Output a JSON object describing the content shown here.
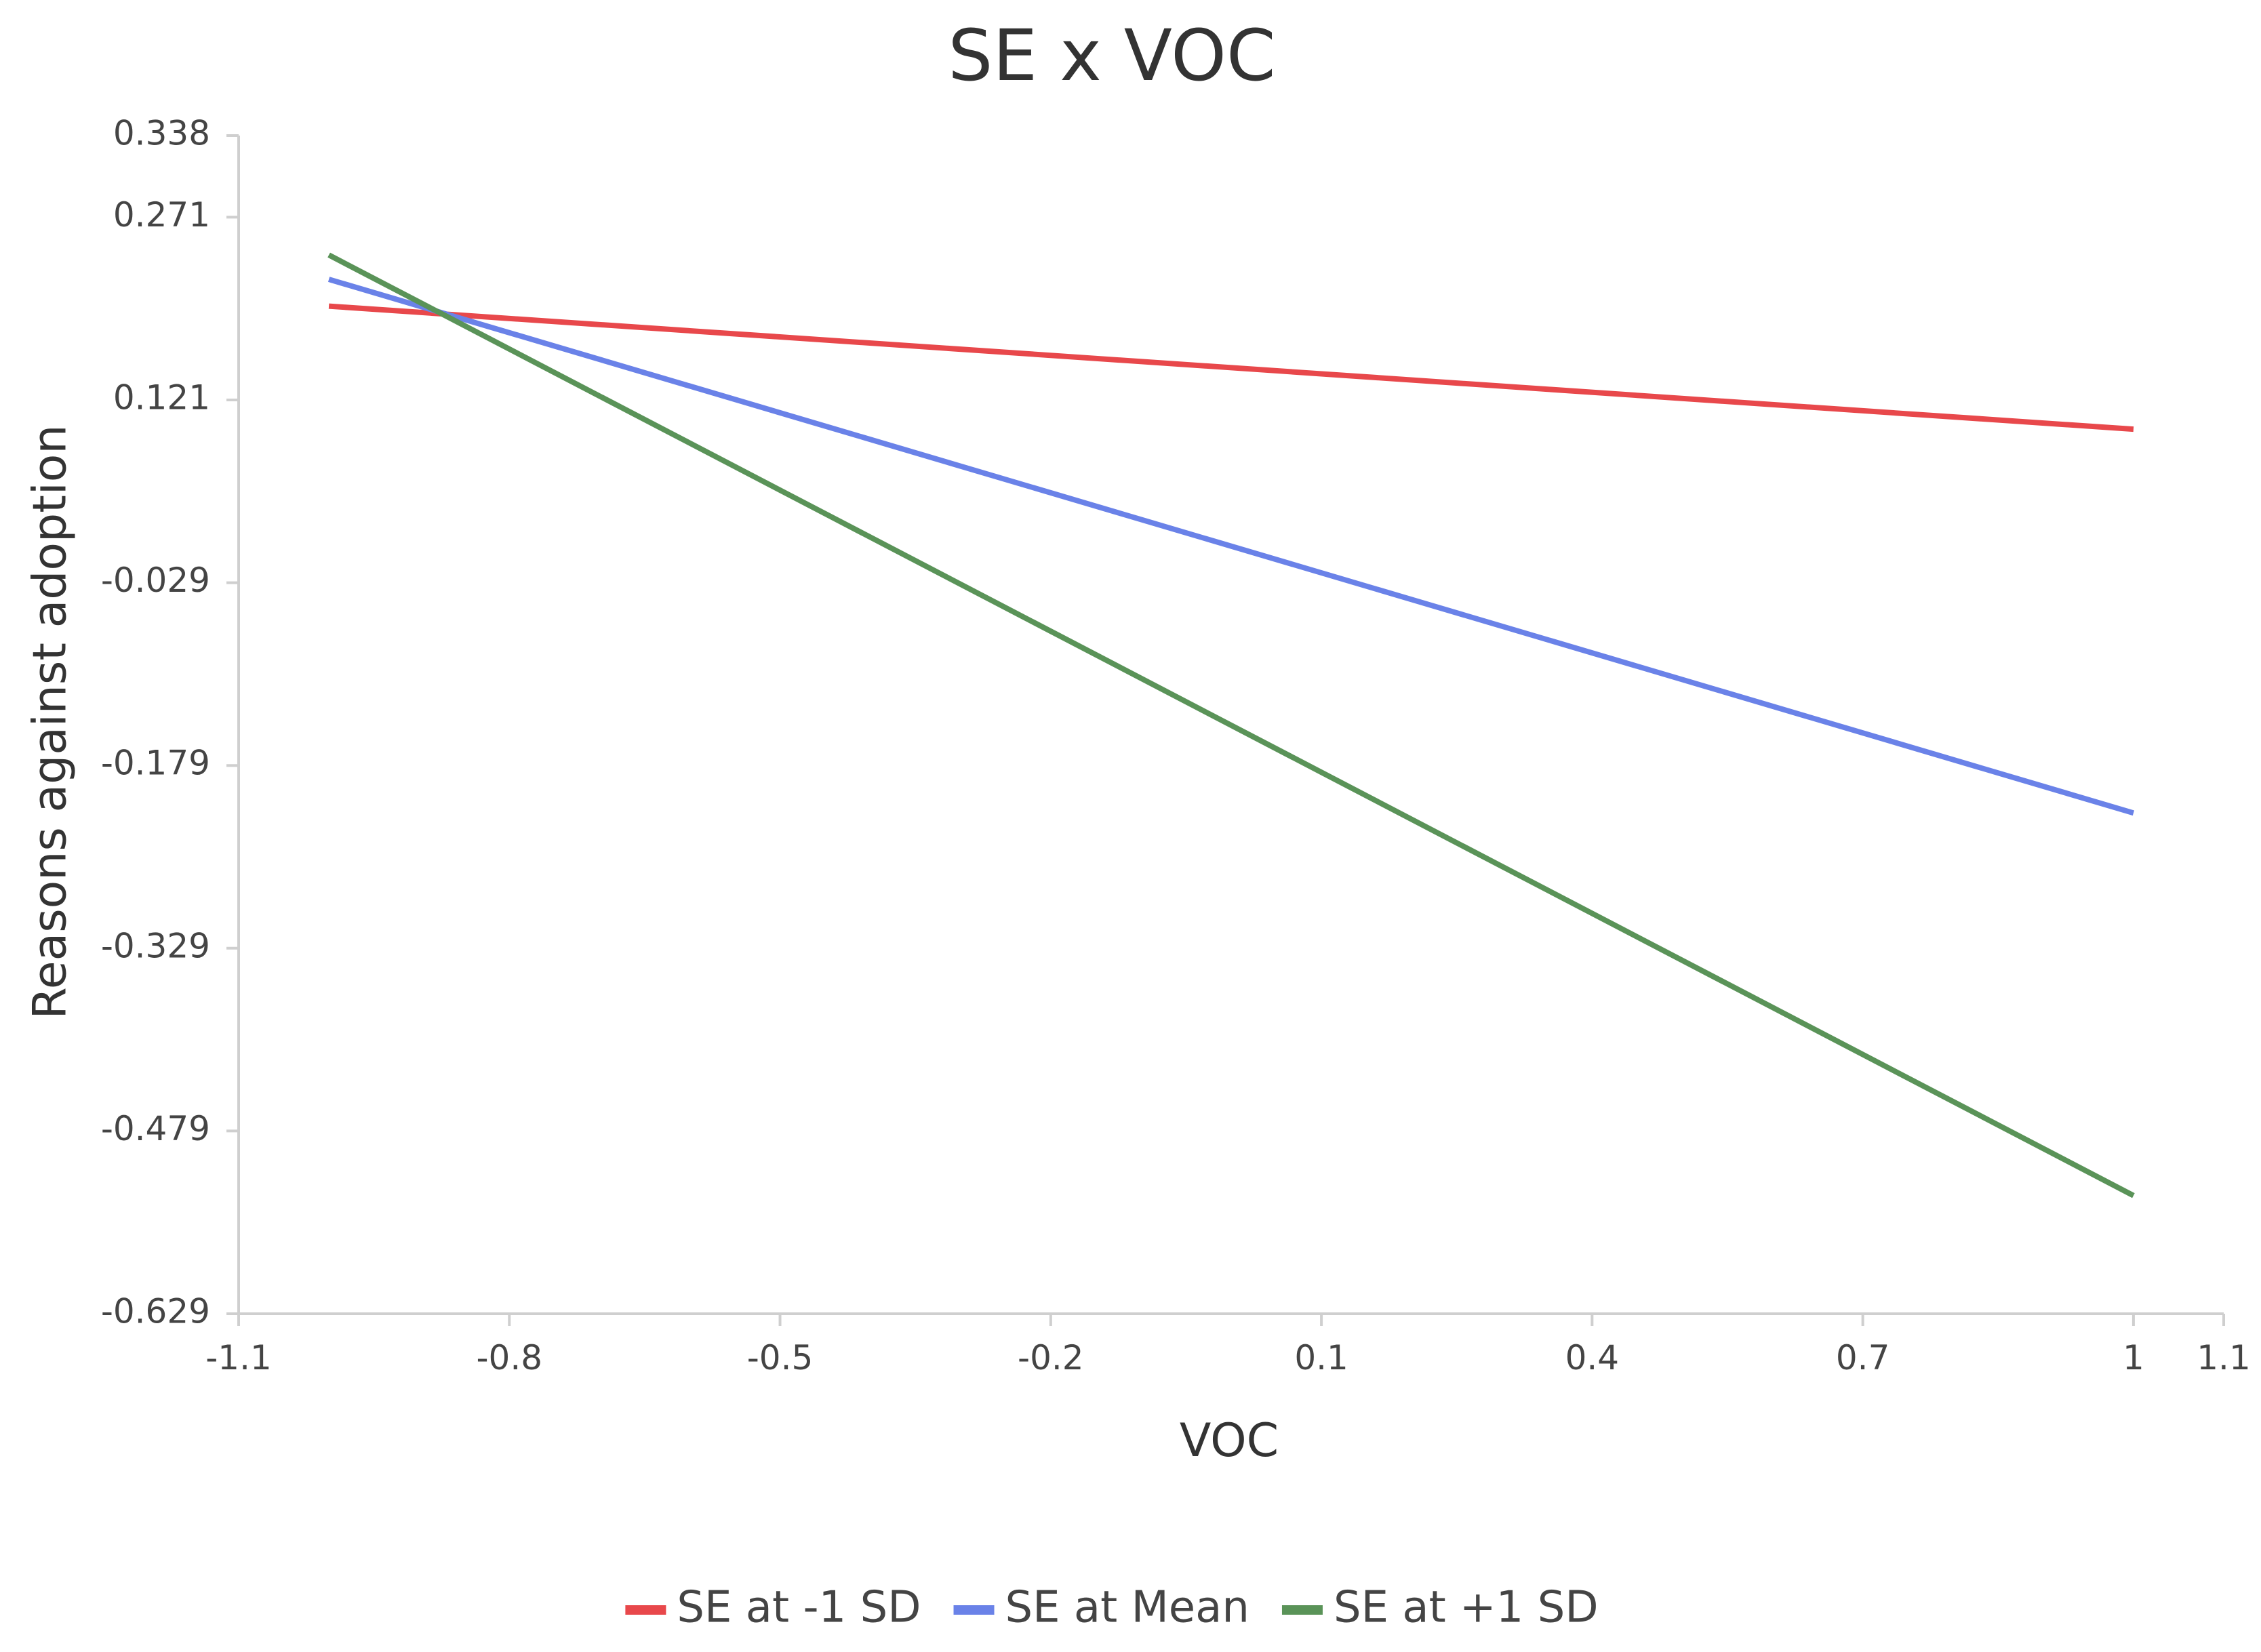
{
  "chart_data": {
    "type": "line",
    "title": "SE x VOC",
    "xlabel": "VOC",
    "ylabel": "Reasons against adoption",
    "xlim": [
      -1.1,
      1.1
    ],
    "ylim": [
      -0.629,
      0.338
    ],
    "x_ticks": [
      {
        "value": -1.1,
        "label": "-1.1"
      },
      {
        "value": -0.8,
        "label": "-0.8"
      },
      {
        "value": -0.5,
        "label": "-0.5"
      },
      {
        "value": -0.2,
        "label": "-0.2"
      },
      {
        "value": 0.1,
        "label": "0.1"
      },
      {
        "value": 0.4,
        "label": "0.4"
      },
      {
        "value": 0.7,
        "label": "0.7"
      },
      {
        "value": 1.0,
        "label": "1"
      },
      {
        "value": 1.1,
        "label": "1.1"
      }
    ],
    "y_ticks": [
      {
        "value": 0.338,
        "label": "0.338"
      },
      {
        "value": 0.271,
        "label": "0.271"
      },
      {
        "value": 0.121,
        "label": "0.121"
      },
      {
        "value": -0.029,
        "label": "-0.029"
      },
      {
        "value": -0.179,
        "label": "-0.179"
      },
      {
        "value": -0.329,
        "label": "-0.329"
      },
      {
        "value": -0.479,
        "label": "-0.479"
      },
      {
        "value": -0.629,
        "label": "-0.629"
      }
    ],
    "grid": false,
    "legend_position": "bottom",
    "series": [
      {
        "name": "SE at -1 SD",
        "color": "#e8484b",
        "x": [
          -1.0,
          1.0
        ],
        "y": [
          0.198,
          0.097
        ]
      },
      {
        "name": "SE at Mean",
        "color": "#6a82e8",
        "x": [
          -1.0,
          1.0
        ],
        "y": [
          0.22,
          -0.218
        ]
      },
      {
        "name": "SE at +1 SD",
        "color": "#5a9358",
        "x": [
          -1.0,
          1.0
        ],
        "y": [
          0.24,
          -0.532
        ]
      }
    ]
  }
}
